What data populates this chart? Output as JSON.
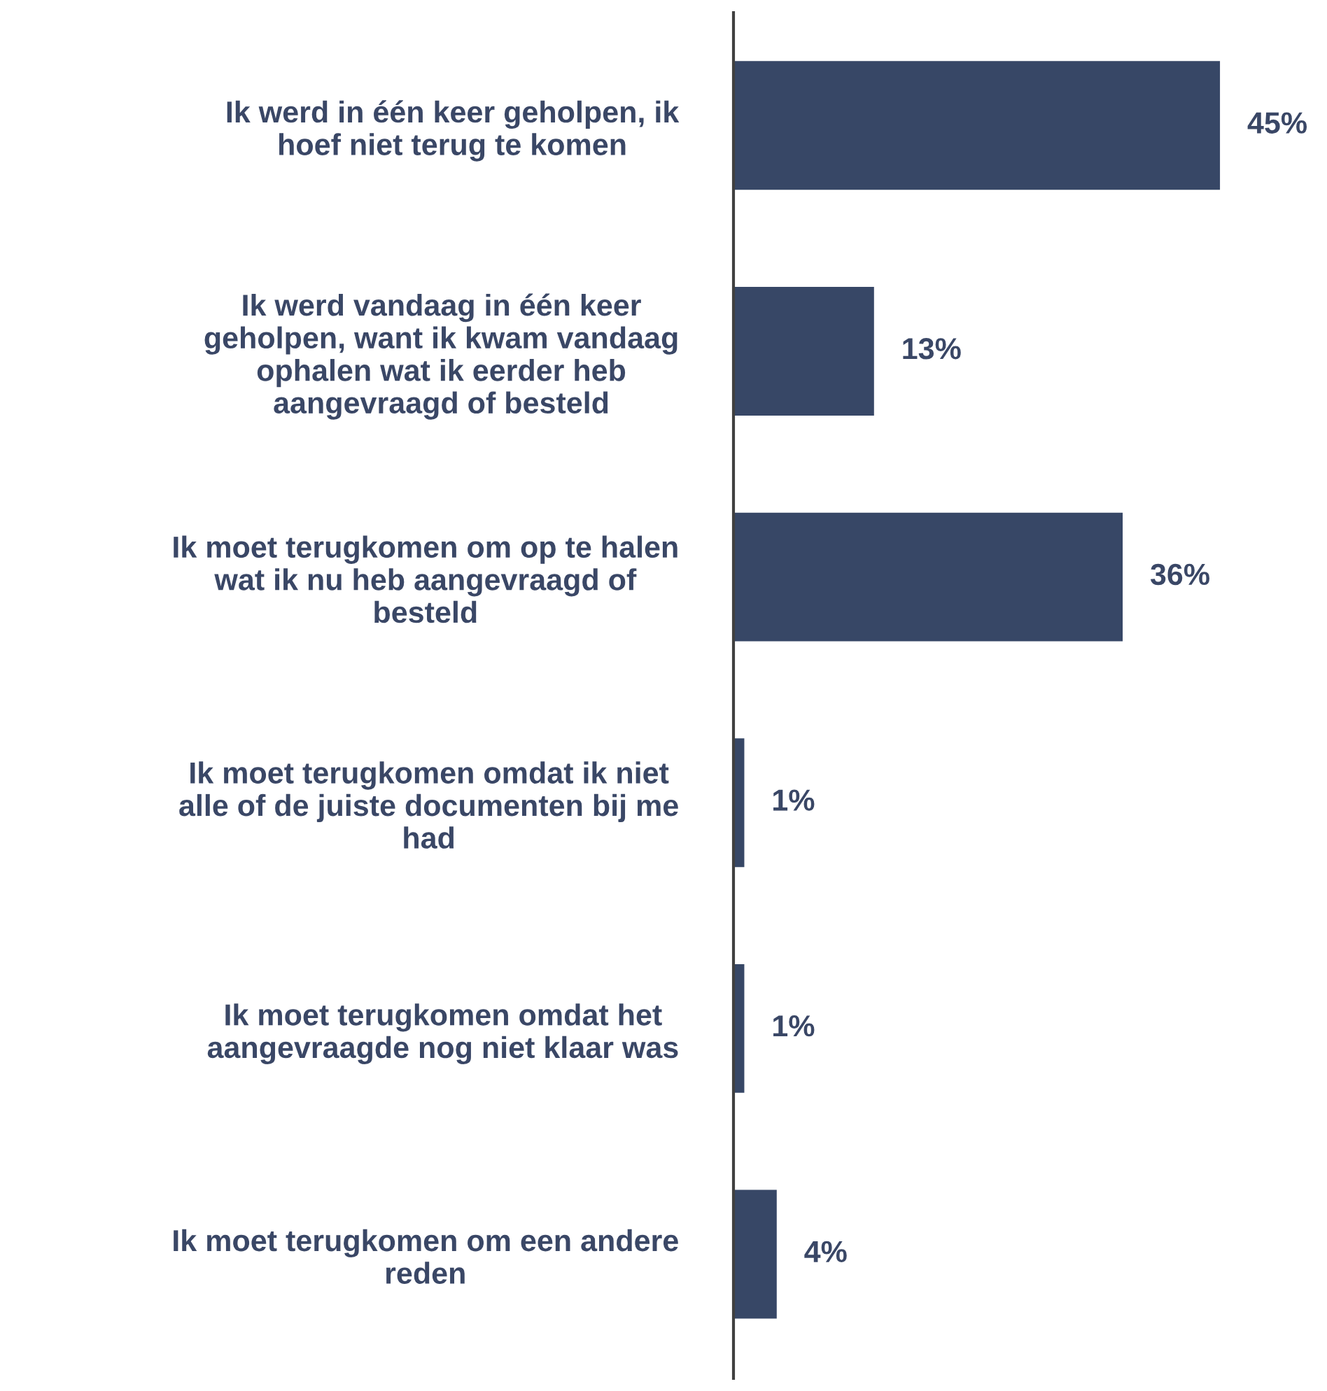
{
  "chart_data": {
    "type": "bar",
    "orientation": "horizontal",
    "categories": [
      "Ik werd in één keer geholpen, ik\nhoef niet terug te komen",
      "Ik werd vandaag in één keer\ngeholpen, want ik kwam vandaag\nophalen wat ik eerder heb\naangevraagd of besteld",
      "Ik moet terugkomen om op te halen\nwat ik nu heb aangevraagd of\nbesteld",
      "Ik moet terugkomen omdat ik niet\nalle of de juiste documenten bij me\nhad",
      "Ik moet terugkomen omdat het\naangevraagde nog niet klaar was",
      "Ik moet terugkomen om een andere\nreden"
    ],
    "values": [
      45,
      13,
      36,
      1,
      1,
      4
    ],
    "value_labels": [
      "45%",
      "13%",
      "36%",
      "1%",
      "1%",
      "4%"
    ],
    "color": "#374766",
    "tick_labels": "y",
    "grid": false,
    "legend": false
  }
}
